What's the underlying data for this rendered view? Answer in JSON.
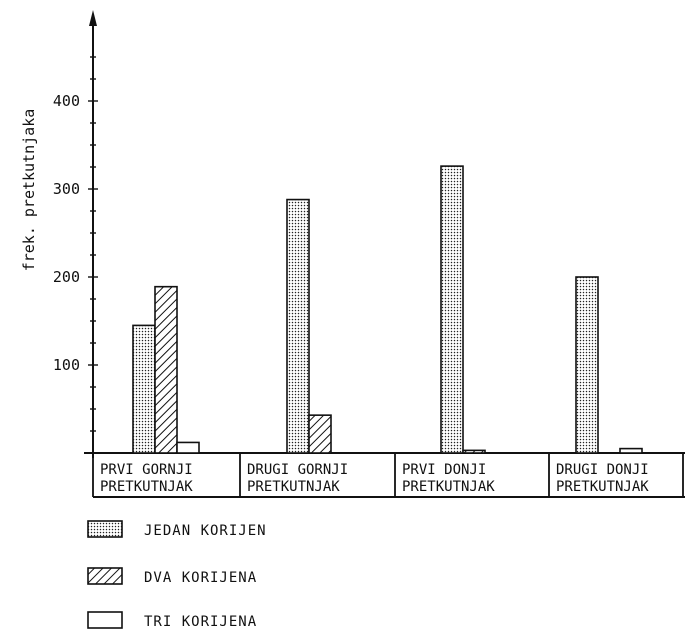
{
  "chart_data": {
    "type": "bar",
    "ylabel": "frek. pretkutnjaka",
    "xlabel": "",
    "ylim": [
      0,
      460
    ],
    "yticks": [
      100,
      200,
      300,
      400
    ],
    "grid": false,
    "legend_position": "bottom-left",
    "categories": [
      [
        "PRVI  GORNJI",
        "PRETKUTNJAK"
      ],
      [
        "DRUGI  GORNJI",
        "PRETKUTNJAK"
      ],
      [
        "PRVI  DONJI",
        "PRETKUTNJAK"
      ],
      [
        "DRUGI DONJI",
        "PRETKUTNJAK"
      ]
    ],
    "series": [
      {
        "name": "JEDAN  KORIJEN",
        "pattern": "dots",
        "values": [
          145,
          288,
          326,
          200
        ]
      },
      {
        "name": "DVA  KORIJENA",
        "pattern": "hatch",
        "values": [
          189,
          43,
          3,
          0
        ]
      },
      {
        "name": "TRI  KORIJENA",
        "pattern": "empty",
        "values": [
          12,
          0,
          0,
          5
        ]
      }
    ]
  }
}
